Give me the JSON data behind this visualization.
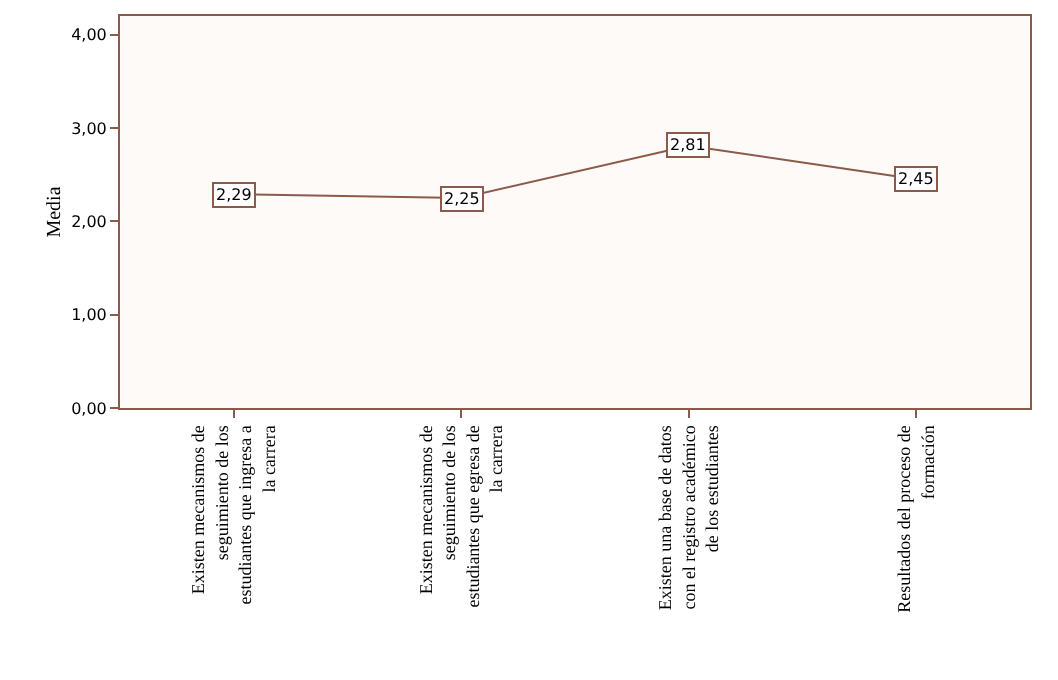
{
  "chart_data": {
    "type": "line",
    "ylabel": "Media",
    "categories": [
      "Existen mecanismos de seguimiento de los estudiantes que ingresa a la carrera",
      "Existen mecanismos de seguimiento de los estudiantes que egresa de la carrera",
      "Existen una base de datos con el registro académico de los estudiantes",
      "Resultados del proceso de formación"
    ],
    "values": [
      2.29,
      2.25,
      2.81,
      2.45
    ],
    "value_labels": [
      "2,29",
      "2,25",
      "2,81",
      "2,45"
    ],
    "color": "#8b5a4a",
    "marker": "square",
    "ylim": [
      0,
      4.2
    ],
    "yticks": [
      {
        "value": 0,
        "label": "0,00"
      },
      {
        "value": 1,
        "label": "1,00"
      },
      {
        "value": 2,
        "label": "2,00"
      },
      {
        "value": 3,
        "label": "3,00"
      },
      {
        "value": 4,
        "label": "4,00"
      }
    ]
  }
}
